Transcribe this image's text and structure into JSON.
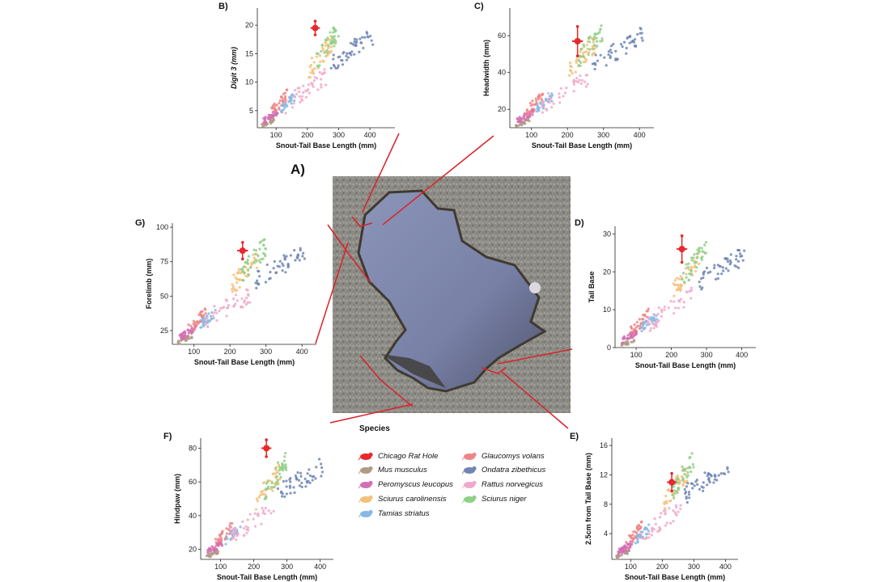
{
  "figure_label": "A)",
  "legend_title": "Species",
  "species": [
    {
      "name": "Chicago Rat Hole",
      "color": "#e8282b"
    },
    {
      "name": "Mus musculus",
      "color": "#b09a86"
    },
    {
      "name": "Peromyscus leucopus",
      "color": "#d36fb3"
    },
    {
      "name": "Sciurus carolinensis",
      "color": "#f3c07a"
    },
    {
      "name": "Tamias striatus",
      "color": "#87b9e4"
    },
    {
      "name": "Glaucomys volans",
      "color": "#ef8585"
    },
    {
      "name": "Ondatra zibethicus",
      "color": "#6f86b4"
    },
    {
      "name": "Rattus norvegicus",
      "color": "#f1a9c9"
    },
    {
      "name": "Sciurus niger",
      "color": "#8fcf86"
    }
  ],
  "chart_data": [
    {
      "id": "B",
      "label": "B)",
      "type": "scatter",
      "xlabel": "Snout-Tail Base Length (mm)",
      "ylabel": "Digit 3 (mm)",
      "xlim": [
        40,
        480
      ],
      "ylim": [
        2,
        23
      ],
      "xticks": [
        "100",
        "200",
        "300",
        "400"
      ],
      "yticks": [
        "5",
        "10",
        "15",
        "20"
      ],
      "xtick_values": [
        100,
        200,
        300,
        400
      ],
      "ytick_values": [
        5,
        10,
        15,
        20
      ],
      "rat_hole": {
        "x": 225,
        "y": 19.5,
        "xerr": 15,
        "yerr": 1.2
      }
    },
    {
      "id": "C",
      "label": "C)",
      "type": "scatter",
      "xlabel": "Snout-Tail Base Length (mm)",
      "ylabel": "Headwidth (mm)",
      "xlim": [
        40,
        440
      ],
      "ylim": [
        10,
        75
      ],
      "xticks": [
        "100",
        "200",
        "300",
        "400"
      ],
      "yticks": [
        "20",
        "40",
        "60"
      ],
      "xtick_values": [
        100,
        200,
        300,
        400
      ],
      "ytick_values": [
        20,
        40,
        60
      ],
      "rat_hole": {
        "x": 228,
        "y": 57,
        "xerr": 15,
        "yerr": 8
      }
    },
    {
      "id": "D",
      "label": "D)",
      "type": "scatter",
      "xlabel": "Snout-Tail Base Length (mm)",
      "ylabel": "Tail Base",
      "xlim": [
        40,
        440
      ],
      "ylim": [
        0,
        32
      ],
      "xticks": [
        "100",
        "200",
        "300",
        "400"
      ],
      "yticks": [
        "0",
        "10",
        "20",
        "30"
      ],
      "xtick_values": [
        100,
        200,
        300,
        400
      ],
      "ytick_values": [
        0,
        10,
        20,
        30
      ],
      "rat_hole": {
        "x": 230,
        "y": 26,
        "xerr": 15,
        "yerr": 3.5
      }
    },
    {
      "id": "E",
      "label": "E)",
      "type": "scatter",
      "xlabel": "Snout-Tail Base Length (mm)",
      "ylabel": "2.5cm from Tail Base (mm)",
      "xlim": [
        40,
        440
      ],
      "ylim": [
        0.5,
        17
      ],
      "xticks": [
        "100",
        "200",
        "300",
        "400"
      ],
      "yticks": [
        "4",
        "8",
        "12",
        "16"
      ],
      "xtick_values": [
        100,
        200,
        300,
        400
      ],
      "ytick_values": [
        4,
        8,
        12,
        16
      ],
      "rat_hole": {
        "x": 230,
        "y": 11,
        "xerr": 15,
        "yerr": 1.2
      }
    },
    {
      "id": "F",
      "label": "F)",
      "type": "scatter",
      "xlabel": "Snout-Tail Base Length (mm)",
      "ylabel": "Hindpaw (mm)",
      "xlim": [
        40,
        440
      ],
      "ylim": [
        14,
        86
      ],
      "xticks": [
        "100",
        "200",
        "300",
        "400"
      ],
      "yticks": [
        "20",
        "40",
        "60",
        "80"
      ],
      "xtick_values": [
        100,
        200,
        300,
        400
      ],
      "ytick_values": [
        20,
        40,
        60,
        80
      ],
      "rat_hole": {
        "x": 238,
        "y": 80,
        "xerr": 15,
        "yerr": 5
      }
    },
    {
      "id": "G",
      "label": "G)",
      "type": "scatter",
      "xlabel": "Snout-Tail Base Length (mm)",
      "ylabel": "Forelimb (mm)",
      "xlim": [
        40,
        440
      ],
      "ylim": [
        15,
        103
      ],
      "xticks": [
        "100",
        "200",
        "300",
        "400"
      ],
      "yticks": [
        "25",
        "50",
        "75",
        "100"
      ],
      "xtick_values": [
        100,
        200,
        300,
        400
      ],
      "ytick_values": [
        25,
        50,
        75,
        100
      ],
      "rat_hole": {
        "x": 235,
        "y": 83,
        "xerr": 15,
        "yerr": 6
      }
    }
  ],
  "species_clusters": [
    {
      "name": "Mus musculus",
      "x": [
        55,
        95
      ],
      "frac": [
        0.0,
        0.08
      ],
      "n": 22
    },
    {
      "name": "Peromyscus leucopus",
      "x": [
        60,
        105
      ],
      "frac": [
        0.03,
        0.16
      ],
      "n": 38
    },
    {
      "name": "Glaucomys volans",
      "x": [
        85,
        135
      ],
      "frac": [
        0.08,
        0.32
      ],
      "n": 30
    },
    {
      "name": "Tamias striatus",
      "x": [
        115,
        160
      ],
      "frac": [
        0.12,
        0.3
      ],
      "n": 28
    },
    {
      "name": "Rattus norvegicus",
      "x": [
        130,
        260
      ],
      "frac": [
        0.12,
        0.5
      ],
      "n": 40
    },
    {
      "name": "Sciurus carolinensis",
      "x": [
        205,
        280
      ],
      "frac": [
        0.4,
        0.8
      ],
      "n": 40
    },
    {
      "name": "Sciurus niger",
      "x": [
        230,
        300
      ],
      "frac": [
        0.48,
        0.9
      ],
      "n": 38
    },
    {
      "name": "Ondatra zibethicus",
      "x": [
        270,
        410
      ],
      "frac": [
        0.45,
        0.85
      ],
      "n": 48
    }
  ]
}
